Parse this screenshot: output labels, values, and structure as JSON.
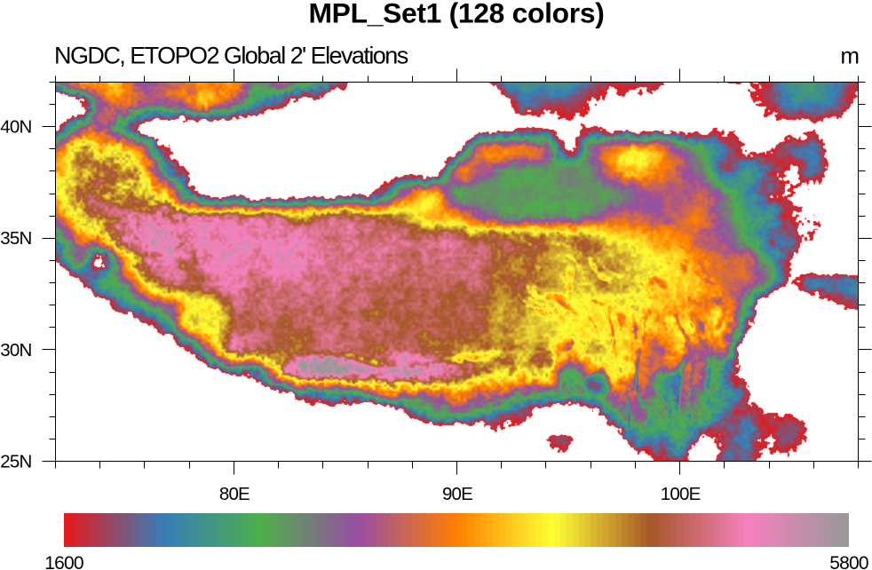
{
  "header": {
    "title": "MPL_Set1 (128 colors)",
    "subtitle_left": "NGDC, ETOPO2 Global 2' Elevations",
    "units_right": "m"
  },
  "colorbar": {
    "min_label": "1600",
    "max_label": "5800",
    "n_colors": 128,
    "anchor_colors": [
      "#e41a1c",
      "#377eb8",
      "#4daf4a",
      "#984ea3",
      "#ff7f00",
      "#ffff33",
      "#a65628",
      "#f781bf",
      "#999999"
    ]
  },
  "axes": {
    "lon": {
      "min": 72,
      "max": 108,
      "minor_step": 2,
      "major_ticks": [
        {
          "value": 80,
          "label": "80E"
        },
        {
          "value": 90,
          "label": "90E"
        },
        {
          "value": 100,
          "label": "100E"
        }
      ]
    },
    "lat": {
      "min": 25,
      "max": 42,
      "minor_step": 1,
      "major_ticks": [
        {
          "value": 40,
          "label": "40N"
        },
        {
          "value": 35,
          "label": "35N"
        },
        {
          "value": 30,
          "label": "30N"
        },
        {
          "value": 25,
          "label": "25N"
        }
      ]
    }
  },
  "chart_data": {
    "type": "heatmap",
    "title": "MPL_Set1 (128 colors)",
    "subtitle": "NGDC, ETOPO2 Global 2' Elevations",
    "units": "m",
    "value_range": [
      1600,
      5800
    ],
    "n_colors": 128,
    "colormap_anchors": [
      "#e41a1c",
      "#377eb8",
      "#4daf4a",
      "#984ea3",
      "#ff7f00",
      "#ffff33",
      "#a65628",
      "#f781bf",
      "#999999"
    ],
    "below_min_color": "#ffffff",
    "domain": {
      "lon": [
        72,
        108
      ],
      "lat": [
        25,
        42
      ]
    },
    "elevation_grid": {
      "lon_start": 72,
      "lon_step": 1,
      "lat_start": 42,
      "lat_step": -1,
      "values": [
        [
          2800,
          3700,
          3900,
          3900,
          3100,
          3400,
          3600,
          3700,
          3600,
          2900,
          3300,
          3000,
          2400,
          1700,
          1100,
          700,
          300,
          500,
          900,
          1300,
          2100,
          2400,
          2300,
          2200,
          1900,
          1700,
          1800,
          1700,
          1450,
          1450,
          1550,
          1650,
          1800,
          2400,
          2400,
          2100,
          1700
        ],
        [
          600,
          1200,
          3300,
          3600,
          3100,
          3200,
          3500,
          3800,
          3200,
          2400,
          1700,
          1300,
          1150,
          1050,
          950,
          850,
          800,
          820,
          850,
          950,
          1200,
          2000,
          1900,
          1900,
          1600,
          1450,
          1400,
          1350,
          1300,
          1350,
          1450,
          1550,
          1750,
          2100,
          2200,
          2000,
          1550
        ],
        [
          1500,
          2600,
          3400,
          2600,
          1600,
          1300,
          1250,
          1250,
          1150,
          1080,
          1050,
          1020,
          1000,
          980,
          950,
          920,
          900,
          850,
          880,
          950,
          1250,
          1500,
          1500,
          1400,
          1650,
          1450,
          1380,
          1320,
          1380,
          1480,
          1550,
          1480,
          1420,
          1480,
          1520,
          1280,
          1280
        ],
        [
          3400,
          4400,
          4200,
          3900,
          3300,
          1600,
          1300,
          1250,
          1180,
          1130,
          1100,
          1060,
          1030,
          1010,
          990,
          960,
          950,
          980,
          1250,
          3200,
          3500,
          3400,
          3100,
          1500,
          3000,
          3800,
          4000,
          3700,
          3100,
          2500,
          2000,
          1600,
          1500,
          1900,
          2100,
          1200,
          1450
        ],
        [
          4100,
          4500,
          4600,
          4600,
          3900,
          2500,
          1500,
          1300,
          1250,
          1200,
          1170,
          1140,
          1130,
          1130,
          1180,
          1240,
          1350,
          1400,
          3400,
          3300,
          2800,
          2750,
          2750,
          2800,
          2850,
          3800,
          4000,
          3700,
          3400,
          2950,
          1900,
          2300,
          1950,
          1600,
          2000,
          1200,
          1380
        ],
        [
          4200,
          4600,
          4700,
          4500,
          4400,
          3700,
          2100,
          1330,
          1330,
          1330,
          1300,
          1300,
          1330,
          1330,
          1600,
          2400,
          3600,
          3900,
          2900,
          2850,
          2780,
          2740,
          2740,
          2780,
          2820,
          2850,
          3150,
          3250,
          3300,
          3350,
          2900,
          2350,
          1900,
          1600,
          1400,
          1250,
          1320
        ],
        [
          3500,
          4300,
          4800,
          5100,
          5200,
          5100,
          4700,
          4650,
          4700,
          4650,
          4550,
          4500,
          4650,
          4700,
          4600,
          4400,
          4300,
          3950,
          3800,
          3350,
          2950,
          2870,
          2820,
          2850,
          3000,
          3300,
          3450,
          3350,
          3450,
          3550,
          3000,
          2550,
          2350,
          1750,
          1500,
          1250,
          1280
        ],
        [
          2500,
          3400,
          3900,
          4800,
          5300,
          5400,
          5260,
          5310,
          5360,
          5310,
          5280,
          5250,
          5050,
          5000,
          5000,
          4950,
          4950,
          4900,
          4850,
          4800,
          4700,
          4600,
          4500,
          4550,
          4500,
          4150,
          4050,
          3850,
          3700,
          3480,
          3180,
          2750,
          2100,
          1900,
          1500,
          1350,
          1150
        ],
        [
          1500,
          2600,
          1500,
          3600,
          5000,
          5300,
          5000,
          5250,
          5300,
          5200,
          5250,
          5220,
          5050,
          5035,
          5020,
          5005,
          4990,
          4975,
          4960,
          4945,
          4700,
          4700,
          4600,
          4500,
          4600,
          4500,
          4280,
          4080,
          3950,
          3720,
          3460,
          3300,
          2500,
          1500,
          500,
          500,
          400
        ],
        [
          500,
          1300,
          2300,
          2800,
          4300,
          4900,
          4900,
          5000,
          5200,
          5100,
          5050,
          4980,
          5000,
          4985,
          4970,
          4955,
          4940,
          4925,
          4910,
          4895,
          4650,
          4750,
          4550,
          4430,
          4550,
          4500,
          4230,
          4130,
          4030,
          3830,
          3520,
          3420,
          2600,
          1500,
          2100,
          2000,
          2200
        ],
        [
          280,
          700,
          1100,
          2100,
          2700,
          3300,
          4250,
          4350,
          5000,
          5000,
          5000,
          4930,
          4950,
          4935,
          4900,
          4900,
          4900,
          4900,
          4900,
          4845,
          4600,
          4550,
          4430,
          4330,
          4230,
          4130,
          4130,
          4030,
          3930,
          3730,
          3830,
          2600,
          900,
          600,
          900,
          1500,
          1800
        ],
        [
          230,
          380,
          650,
          480,
          1400,
          2200,
          4100,
          4300,
          4800,
          4900,
          4900,
          4880,
          4900,
          4885,
          4850,
          4850,
          4850,
          4850,
          4850,
          4795,
          4570,
          4500,
          4400,
          4300,
          4200,
          4000,
          3930,
          4030,
          4130,
          3830,
          4030,
          1800,
          420,
          380,
          420,
          500,
          800
        ],
        [
          190,
          280,
          380,
          340,
          340,
          800,
          1900,
          3400,
          4750,
          4750,
          4750,
          4750,
          4950,
          4950,
          4950,
          4950,
          4950,
          4750,
          4600,
          4650,
          4700,
          4500,
          4500,
          4000,
          4400,
          4200,
          4000,
          3550,
          4050,
          3420,
          3300,
          850,
          470,
          380,
          340,
          380,
          480
        ],
        [
          170,
          210,
          270,
          290,
          290,
          340,
          340,
          1100,
          1700,
          2400,
          4300,
          5350,
          5400,
          5450,
          5500,
          5500,
          5450,
          5200,
          5000,
          4650,
          4600,
          4200,
          4300,
          2550,
          3600,
          4100,
          3800,
          3550,
          3550,
          3420,
          2150,
          1350,
          470,
          380,
          380,
          650,
          850
        ],
        [
          150,
          190,
          240,
          270,
          270,
          290,
          290,
          290,
          380,
          650,
          1350,
          1950,
          2150,
          2350,
          2750,
          3550,
          3350,
          3450,
          3750,
          3550,
          3350,
          2950,
          2750,
          2650,
          2750,
          3450,
          3350,
          3150,
          3350,
          2750,
          2300,
          1700,
          600,
          500,
          900,
          1100,
          1000
        ],
        [
          140,
          170,
          210,
          240,
          250,
          270,
          270,
          290,
          290,
          240,
          290,
          650,
          1050,
          1050,
          550,
          380,
          1550,
          2150,
          2450,
          2350,
          2050,
          1750,
          950,
          470,
          1150,
          2250,
          3150,
          2750,
          2950,
          2550,
          1950,
          1950,
          1650,
          1550,
          1250,
          950,
          750
        ],
        [
          100,
          110,
          140,
          170,
          190,
          210,
          230,
          250,
          270,
          240,
          220,
          190,
          170,
          150,
          130,
          110,
          100,
          140,
          240,
          650,
          1400,
          1200,
          1500,
          1800,
          550,
          950,
          2150,
          2250,
          2450,
          1600,
          1850,
          2050,
          1700,
          1850,
          1350,
          950,
          550
        ],
        [
          100,
          110,
          130,
          150,
          170,
          190,
          210,
          230,
          240,
          220,
          200,
          180,
          160,
          140,
          120,
          100,
          90,
          100,
          140,
          380,
          850,
          850,
          1400,
          1100,
          380,
          470,
          1350,
          1750,
          1850,
          1400,
          1850,
          1850,
          1500,
          1450,
          1150,
          850,
          650
        ]
      ]
    }
  }
}
